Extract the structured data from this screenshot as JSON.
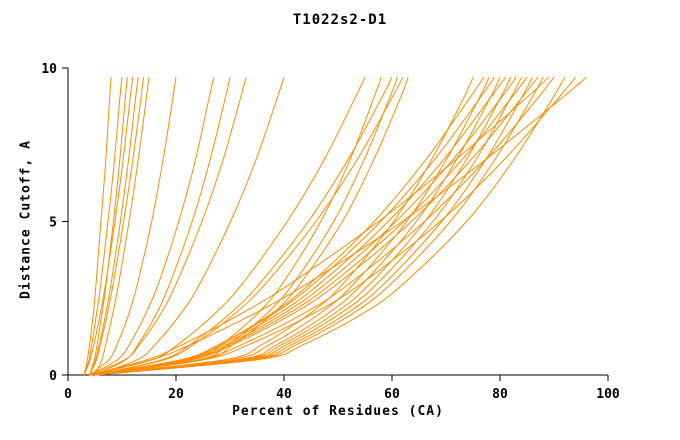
{
  "chart_data": {
    "type": "line",
    "title": "T1022s2-D1",
    "xlabel": "Percent of Residues (CA)",
    "ylabel": "Distance Cutoff, A",
    "xlim": [
      0,
      100
    ],
    "ylim": [
      0,
      10
    ],
    "x_ticks": [
      0,
      20,
      40,
      60,
      80,
      100
    ],
    "y_ticks": [
      0,
      5,
      10
    ],
    "grid": false,
    "legend": "none",
    "line_color": "#ff8c00",
    "y_samples": [
      0,
      0.5,
      1,
      2,
      3,
      5,
      7,
      9,
      9.7
    ],
    "series_x": [
      [
        3,
        3.6,
        4.0,
        4.7,
        5.2,
        6.1,
        7.0,
        7.7,
        8
      ],
      [
        3,
        3.9,
        4.4,
        5.3,
        6.1,
        7.4,
        8.6,
        9.6,
        10
      ],
      [
        4,
        4.9,
        5.4,
        6.3,
        7.1,
        8.4,
        9.6,
        10.6,
        11
      ],
      [
        3,
        4.1,
        4.8,
        6.0,
        7.0,
        8.7,
        10.2,
        11.5,
        12
      ],
      [
        4,
        5.1,
        5.8,
        7.0,
        8.0,
        9.7,
        11.2,
        12.5,
        13
      ],
      [
        4,
        5.3,
        6.0,
        7.3,
        8.4,
        10.3,
        12.0,
        13.5,
        14
      ],
      [
        5,
        6.3,
        7.0,
        8.3,
        9.4,
        11.3,
        13.0,
        14.5,
        15
      ],
      [
        4,
        7.6,
        9.1,
        11.3,
        12.9,
        15.5,
        17.6,
        19.4,
        20
      ],
      [
        4,
        9.2,
        11.4,
        14.4,
        16.8,
        20.5,
        23.6,
        26.1,
        27
      ],
      [
        5,
        10.7,
        13.0,
        16.4,
        18.9,
        23.0,
        26.3,
        29.1,
        30
      ],
      [
        4,
        10.6,
        13.3,
        17.2,
        20.1,
        24.8,
        28.7,
        31.9,
        33
      ],
      [
        5,
        12.9,
        16.2,
        20.9,
        24.5,
        30.1,
        34.8,
        38.7,
        40
      ],
      [
        4,
        15.6,
        20.4,
        27.2,
        32.4,
        40.6,
        47.4,
        53.1,
        55
      ],
      [
        4,
        23.1,
        28.4,
        35.1,
        39.8,
        46.8,
        52.2,
        56.6,
        58
      ],
      [
        5,
        17.5,
        22.7,
        30.0,
        35.6,
        44.5,
        51.8,
        58.0,
        60
      ],
      [
        4,
        24.2,
        29.7,
        36.8,
        41.8,
        49.2,
        54.8,
        59.5,
        61
      ],
      [
        5,
        17.9,
        23.3,
        30.9,
        36.7,
        45.9,
        53.5,
        59.9,
        62
      ],
      [
        4,
        24.9,
        30.6,
        37.9,
        43.1,
        50.8,
        56.6,
        61.5,
        63
      ],
      [
        4,
        29.1,
        36.0,
        44.8,
        51.1,
        60.3,
        67.3,
        73.2,
        75
      ],
      [
        5,
        21.3,
        28.1,
        37.7,
        45.0,
        56.7,
        66.2,
        74.3,
        77
      ],
      [
        4,
        30.2,
        37.4,
        46.6,
        53.1,
        62.7,
        70.0,
        76.1,
        78
      ],
      [
        4,
        21.0,
        28.1,
        38.1,
        45.7,
        57.9,
        67.8,
        76.2,
        79
      ],
      [
        5,
        31.6,
        38.8,
        48.1,
        54.7,
        64.5,
        71.9,
        78.1,
        80
      ],
      [
        4,
        21.5,
        28.7,
        39.0,
        46.8,
        59.3,
        69.5,
        78.1,
        81
      ],
      [
        5,
        32.3,
        39.7,
        49.3,
        56.1,
        66.1,
        73.7,
        80.0,
        82
      ],
      [
        4,
        21.9,
        29.4,
        39.9,
        47.9,
        60.7,
        71.2,
        80.1,
        83
      ],
      [
        5,
        33.0,
        40.6,
        50.4,
        57.4,
        67.6,
        75.5,
        81.9,
        84
      ],
      [
        4,
        22.4,
        30.0,
        40.8,
        49.0,
        62.2,
        72.9,
        82.0,
        85
      ],
      [
        5,
        33.7,
        41.5,
        51.6,
        58.7,
        69.2,
        77.3,
        83.9,
        86
      ],
      [
        4,
        22.8,
        30.6,
        41.7,
        50.1,
        63.6,
        74.6,
        83.9,
        87
      ],
      [
        5,
        34.4,
        42.4,
        52.7,
        60.0,
        70.8,
        79.0,
        85.8,
        88
      ],
      [
        4,
        14.7,
        21.3,
        32.1,
        41.4,
        57.5,
        71.7,
        84.7,
        89
      ],
      [
        5,
        24.3,
        32.3,
        43.6,
        52.3,
        66.0,
        77.3,
        86.9,
        90
      ],
      [
        4,
        35.2,
        43.7,
        54.6,
        62.3,
        73.8,
        82.5,
        89.7,
        92
      ],
      [
        5,
        25.2,
        33.6,
        45.4,
        54.5,
        68.9,
        80.7,
        90.7,
        94
      ],
      [
        4,
        15.6,
        22.8,
        34.5,
        44.5,
        61.9,
        77.2,
        91.3,
        96
      ]
    ]
  }
}
